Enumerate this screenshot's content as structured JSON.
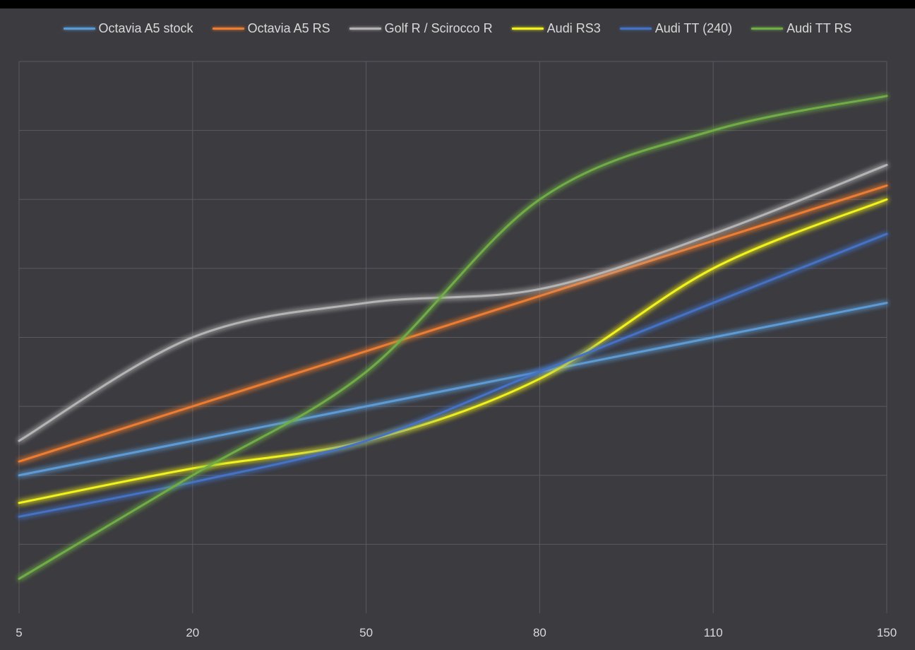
{
  "chart_data": {
    "type": "line",
    "categories": [
      "5",
      "20",
      "50",
      "80",
      "110",
      "150"
    ],
    "series": [
      {
        "name": "Octavia A5 stock",
        "color": "#5b9bd5",
        "values": [
          2.0,
          2.5,
          3.0,
          3.5,
          4.0,
          4.5
        ]
      },
      {
        "name": "Octavia A5 RS",
        "color": "#ed7d31",
        "values": [
          2.2,
          3.0,
          3.8,
          4.6,
          5.4,
          6.2
        ]
      },
      {
        "name": "Golf R / Scirocco R",
        "color": "#b4b4b4",
        "values": [
          2.5,
          4.0,
          4.5,
          4.7,
          5.5,
          6.5
        ]
      },
      {
        "name": "Audi RS3",
        "color": "#f2f21a",
        "values": [
          1.6,
          2.1,
          2.5,
          3.4,
          5.0,
          6.0
        ]
      },
      {
        "name": "Audi TT (240)",
        "color": "#4472c4",
        "values": [
          1.4,
          1.9,
          2.5,
          3.5,
          4.5,
          5.5
        ]
      },
      {
        "name": "Audi TT RS",
        "color": "#70ad47",
        "values": [
          0.5,
          2.0,
          3.5,
          6.0,
          7.0,
          7.5
        ]
      }
    ],
    "ylim": [
      0,
      8
    ],
    "smooth": true,
    "grid": true,
    "legend_position": "top"
  }
}
